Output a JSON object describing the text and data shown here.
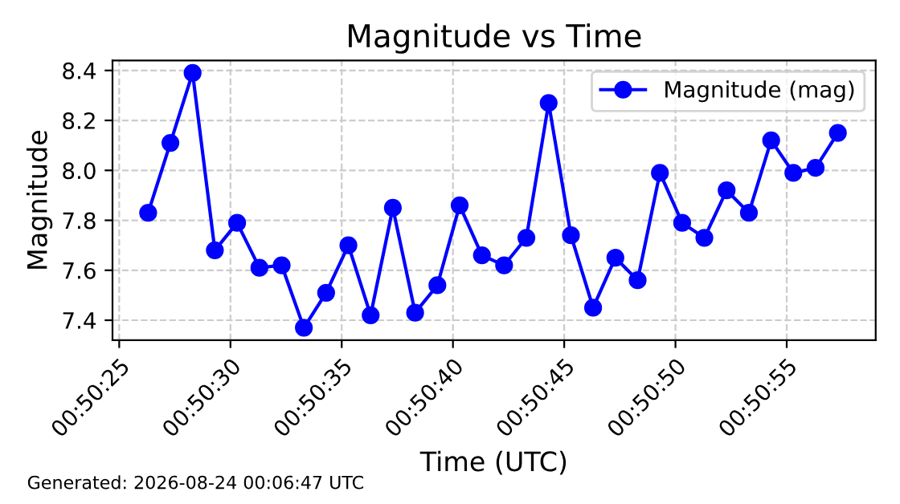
{
  "chart_data": {
    "type": "line",
    "title": "Magnitude vs Time",
    "xlabel": "Time (UTC)",
    "ylabel": "Magnitude",
    "x": [
      0.840639,
      0.840917,
      0.841194,
      0.841472,
      0.84175,
      0.842028,
      0.842306,
      0.842583,
      0.842861,
      0.843139,
      0.843417,
      0.843694,
      0.843972,
      0.84425,
      0.844528,
      0.844806,
      0.845083,
      0.845361,
      0.845639,
      0.845917,
      0.846194,
      0.846472,
      0.84675,
      0.847028,
      0.847306,
      0.847583,
      0.847861,
      0.848139,
      0.848417,
      0.848694,
      0.848972,
      0.84925
    ],
    "series": [
      {
        "name": "Magnitude (mag)",
        "color": "#0000ff",
        "values": [
          7.83,
          8.11,
          8.39,
          7.68,
          7.79,
          7.61,
          7.62,
          7.37,
          7.51,
          7.7,
          7.42,
          7.85,
          7.43,
          7.54,
          7.86,
          7.66,
          7.62,
          7.73,
          8.27,
          7.74,
          7.45,
          7.65,
          7.56,
          7.99,
          7.79,
          7.73,
          7.92,
          7.83,
          8.12,
          7.99,
          8.01,
          8.15
        ]
      }
    ],
    "xlim": [
      0.840194,
      0.849722
    ],
    "xticks": [
      {
        "value": 0.8402778,
        "label": "00:50:25"
      },
      {
        "value": 0.8416667,
        "label": "00:50:30"
      },
      {
        "value": 0.8430556,
        "label": "00:50:35"
      },
      {
        "value": 0.8444444,
        "label": "00:50:40"
      },
      {
        "value": 0.8458333,
        "label": "00:50:45"
      },
      {
        "value": 0.8472222,
        "label": "00:50:50"
      },
      {
        "value": 0.8486111,
        "label": "00:50:55"
      }
    ],
    "ylim": [
      7.32,
      8.44
    ],
    "yticks": [
      {
        "value": 7.4,
        "label": "7.4"
      },
      {
        "value": 7.6,
        "label": "7.6"
      },
      {
        "value": 7.8,
        "label": "7.8"
      },
      {
        "value": 8.0,
        "label": "8.0"
      },
      {
        "value": 8.2,
        "label": "8.2"
      },
      {
        "value": 8.4,
        "label": "8.4"
      }
    ],
    "grid": true,
    "legend": "top right",
    "marker": "circle",
    "line_style": "solid",
    "annotations": [
      "Generated: 2026-08-24 00:06:47 UTC"
    ]
  }
}
